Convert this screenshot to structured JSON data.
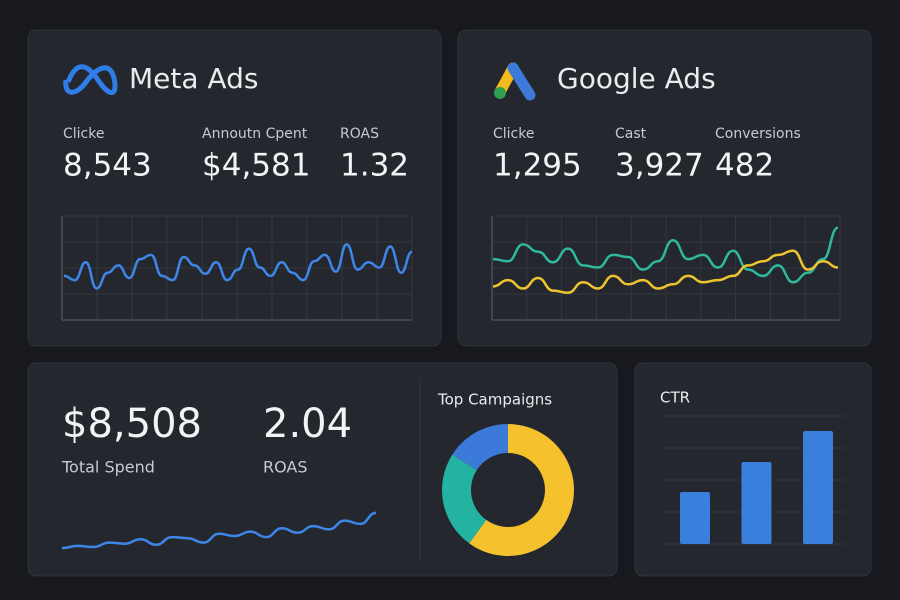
{
  "meta": {
    "title": "Meta Ads",
    "metrics": [
      {
        "label": "Clicke",
        "value": "8,543"
      },
      {
        "label": "Annoutn Cpent",
        "value": "$4,581"
      },
      {
        "label": "ROAS",
        "value": "1.32"
      }
    ],
    "trend": {
      "color": "#3d86e8",
      "values": [
        42,
        38,
        55,
        30,
        45,
        52,
        40,
        58,
        62,
        42,
        38,
        60,
        52,
        44,
        55,
        38,
        48,
        68,
        50,
        42,
        55,
        45,
        38,
        56,
        62,
        46,
        72,
        48,
        55,
        50,
        70,
        45,
        65
      ]
    }
  },
  "google": {
    "title": "Google Ads",
    "metrics": [
      {
        "label": "Clicke",
        "value": "1,295"
      },
      {
        "label": "Cast",
        "value": "3,927"
      },
      {
        "label": "Conversions",
        "value": "482"
      }
    ],
    "series": [
      {
        "color": "#2fb89e",
        "values": [
          58,
          56,
          72,
          65,
          55,
          68,
          52,
          50,
          62,
          60,
          48,
          56,
          76,
          58,
          62,
          50,
          66,
          48,
          42,
          52,
          36,
          45,
          58,
          88
        ]
      },
      {
        "color": "#eec42e",
        "values": [
          32,
          38,
          30,
          40,
          28,
          26,
          36,
          30,
          42,
          34,
          38,
          30,
          34,
          42,
          36,
          38,
          42,
          52,
          56,
          62,
          66,
          48,
          56,
          50
        ]
      }
    ]
  },
  "summary": {
    "spend": {
      "value": "$8,508",
      "label": "Total Spend"
    },
    "roas": {
      "value": "2.04",
      "label": "ROAS"
    },
    "trend": {
      "color": "#3d86e8",
      "values": [
        18,
        22,
        20,
        28,
        26,
        34,
        24,
        38,
        36,
        28,
        44,
        40,
        48,
        38,
        54,
        46,
        58,
        52,
        68,
        62,
        82
      ]
    },
    "campaigns": {
      "title": "Top Campaigns",
      "segments": [
        {
          "color": "#f5c12c",
          "value": 60
        },
        {
          "color": "#23b3a0",
          "value": 24
        },
        {
          "color": "#3b7ad8",
          "value": 16
        }
      ]
    }
  },
  "ctr": {
    "title": "CTR",
    "color": "#3b7fdc",
    "values": [
      52,
      82,
      113
    ]
  }
}
